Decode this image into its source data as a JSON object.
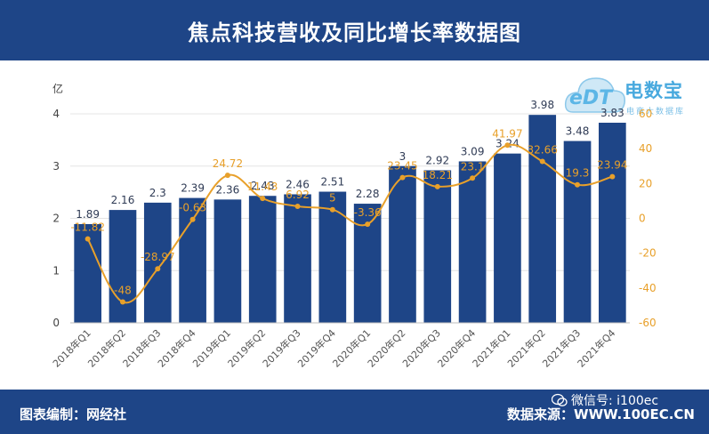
{
  "header": {
    "title": "焦点科技营收及同比增长率数据图"
  },
  "footer": {
    "left": "图表编制：网经社",
    "right": "数据来源：WWW.100EC.CN",
    "wechat": "微信号: i100ec"
  },
  "logo": {
    "brand": "电数宝",
    "mark": "eDT",
    "sub": "电商大数据库"
  },
  "colors": {
    "bar": "#1e4587",
    "line": "#e8a02a",
    "header": "#1e4587"
  },
  "chart_data": {
    "type": "bar",
    "categories": [
      "2018年Q1",
      "2018年Q2",
      "2018年Q3",
      "2018年Q4",
      "2019年Q1",
      "2019年Q2",
      "2019年Q3",
      "2019年Q4",
      "2020年Q1",
      "2020年Q2",
      "2020年Q3",
      "2020年Q4",
      "2021年Q1",
      "2021年Q2",
      "2021年Q3",
      "2021年Q4"
    ],
    "series": [
      {
        "type": "bar",
        "axis": "left",
        "values": [
          1.89,
          2.16,
          2.3,
          2.39,
          2.36,
          2.43,
          2.46,
          2.51,
          2.28,
          3,
          2.92,
          3.09,
          3.24,
          3.98,
          3.48,
          3.83
        ]
      },
      {
        "type": "line",
        "axis": "right",
        "values": [
          -11.82,
          -48,
          -28.97,
          -0.63,
          24.72,
          11.43,
          6.92,
          5,
          -3.36,
          23.45,
          18.21,
          23.1,
          41.97,
          32.66,
          19.3,
          23.94
        ]
      }
    ],
    "ylabel": "亿",
    "ylim": [
      0,
      4
    ],
    "yticks": [
      "0",
      "1",
      "2",
      "3",
      "4"
    ],
    "y2lim": [
      -60,
      60
    ],
    "y2ticks": [
      "-60",
      "-40",
      "-20",
      "0",
      "20",
      "40",
      "60"
    ],
    "grid": true,
    "legend": "none"
  }
}
